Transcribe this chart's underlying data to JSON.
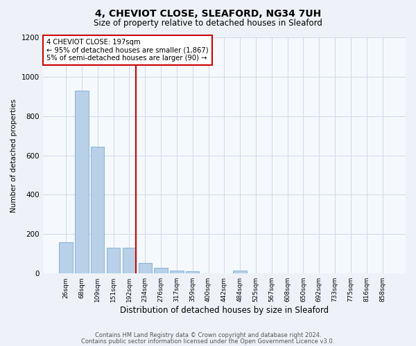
{
  "title": "4, CHEVIOT CLOSE, SLEAFORD, NG34 7UH",
  "subtitle": "Size of property relative to detached houses in Sleaford",
  "xlabel": "Distribution of detached houses by size in Sleaford",
  "ylabel": "Number of detached properties",
  "categories": [
    "26sqm",
    "68sqm",
    "109sqm",
    "151sqm",
    "192sqm",
    "234sqm",
    "276sqm",
    "317sqm",
    "359sqm",
    "400sqm",
    "442sqm",
    "484sqm",
    "525sqm",
    "567sqm",
    "608sqm",
    "650sqm",
    "692sqm",
    "733sqm",
    "775sqm",
    "816sqm",
    "858sqm"
  ],
  "values": [
    160,
    930,
    645,
    130,
    130,
    55,
    30,
    15,
    10,
    0,
    0,
    15,
    0,
    0,
    0,
    0,
    0,
    0,
    0,
    0,
    0
  ],
  "bar_color": "#b8d0e8",
  "bar_edge_color": "#7aaed4",
  "red_line_index": 4,
  "annotation_line1": "4 CHEVIOT CLOSE: 197sqm",
  "annotation_line2": "← 95% of detached houses are smaller (1,867)",
  "annotation_line3": "5% of semi-detached houses are larger (90) →",
  "annotation_box_color": "#ffffff",
  "annotation_box_edge_color": "#cc0000",
  "red_line_color": "#cc0000",
  "ylim": [
    0,
    1200
  ],
  "yticks": [
    0,
    200,
    400,
    600,
    800,
    1000,
    1200
  ],
  "footer_line1": "Contains HM Land Registry data © Crown copyright and database right 2024.",
  "footer_line2": "Contains public sector information licensed under the Open Government Licence v3.0.",
  "bg_color": "#eef2f8",
  "plot_bg_color": "#f5f8fd",
  "grid_color": "#d0d8e8"
}
